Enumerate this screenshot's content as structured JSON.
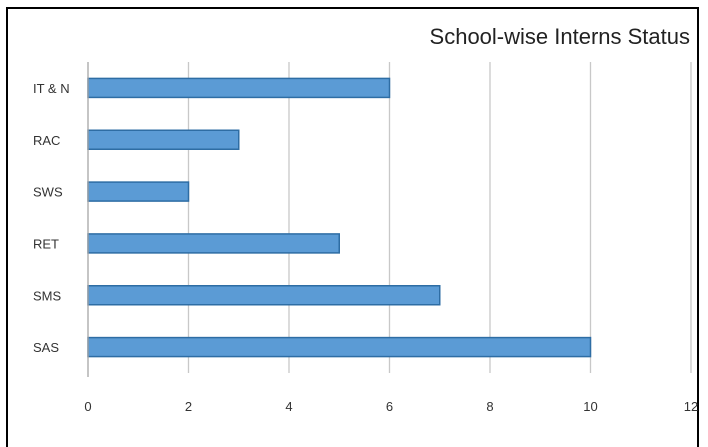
{
  "chart_data": {
    "type": "bar",
    "orientation": "horizontal",
    "title": "School-wise Interns Status",
    "xlabel": "",
    "ylabel": "",
    "categories": [
      "IT & N",
      "RAC",
      "SWS",
      "RET",
      "SMS",
      "SAS"
    ],
    "values": [
      6,
      3,
      2,
      5,
      7,
      10
    ],
    "xlim": [
      0,
      12
    ],
    "xticks": [
      "0",
      "2",
      "4",
      "6",
      "8",
      "10",
      "12"
    ],
    "grid": "vertical",
    "legend": "none",
    "colors": {
      "bar_fill": "#5b9bd5",
      "bar_stroke": "#2e6da4",
      "grid": "#c8c8c8",
      "axis": "#a6a6a6"
    }
  }
}
